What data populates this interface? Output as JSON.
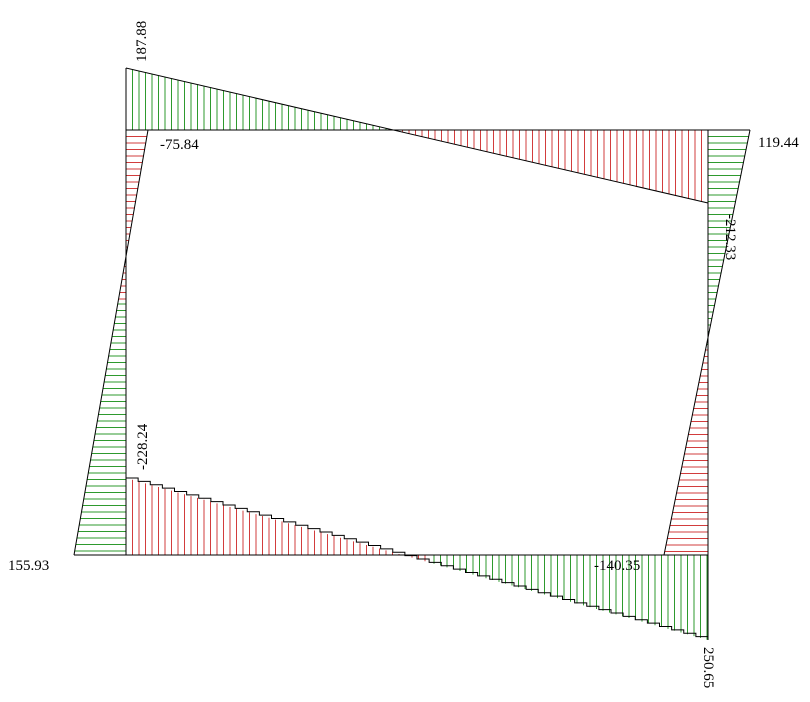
{
  "labels": {
    "top_left_end": "187.88",
    "top_left_inner": "-75.84",
    "top_right_end": "119.44",
    "right_upper": "-212.33",
    "left_lower": "-228.24",
    "bottom_left_end": "155.93",
    "bottom_right_inner": "-140.35",
    "bottom_right_end": "250.65"
  },
  "colors": {
    "positive": "#2e9a2e",
    "negative": "#d23c3c",
    "outline": "#000000",
    "background": "#ffffff"
  }
}
